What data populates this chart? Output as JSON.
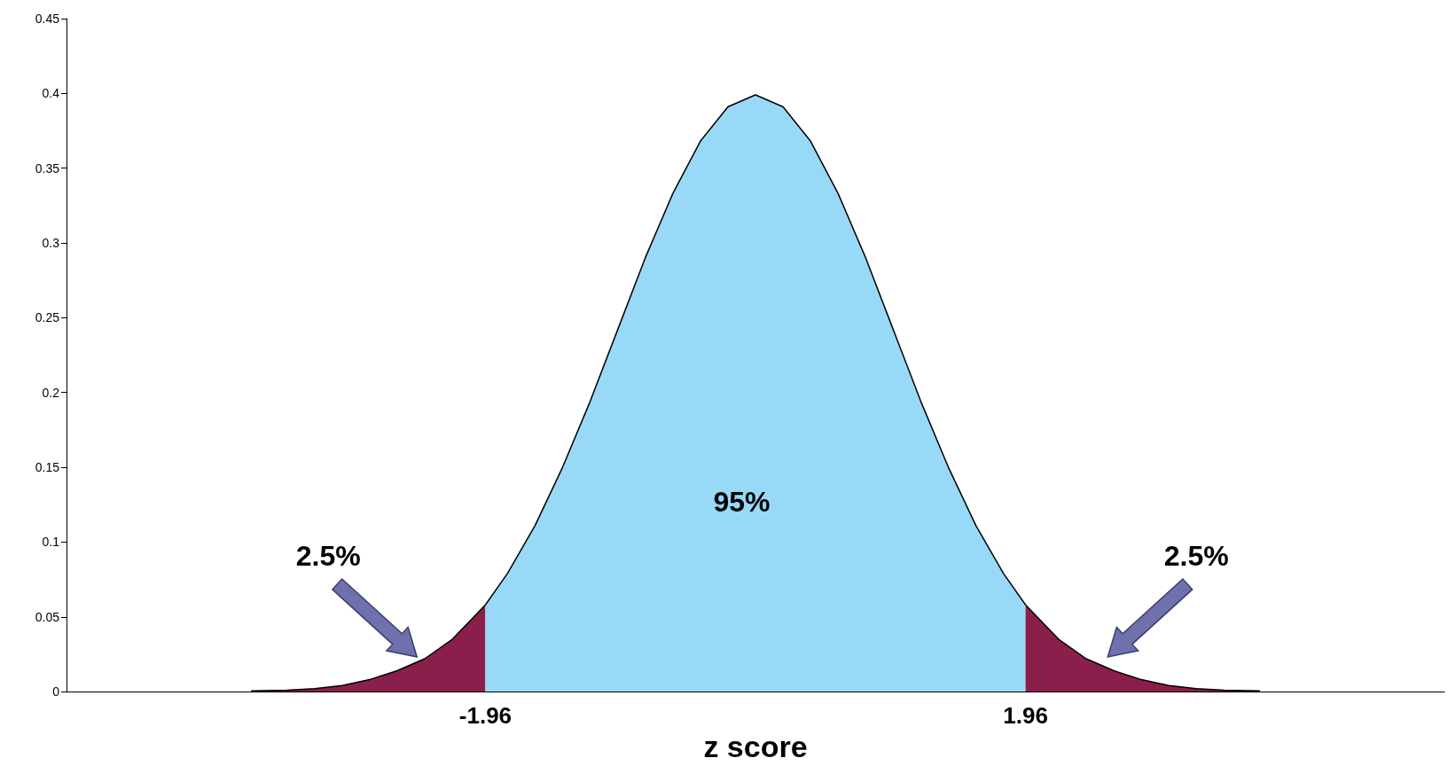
{
  "chart_data": {
    "type": "area",
    "xlabel": "z score",
    "xlim": [
      -5,
      5
    ],
    "xticks": [
      {
        "value": -1.96,
        "label": "-1.96"
      },
      {
        "value": 1.96,
        "label": "1.96"
      }
    ],
    "ylim": [
      0,
      0.45
    ],
    "yticks": [
      0,
      0.05,
      0.1,
      0.15,
      0.2,
      0.25,
      0.3,
      0.35,
      0.4,
      0.45
    ],
    "grid": false,
    "series": [
      {
        "color": "#8b1f4b",
        "x": [
          -3.66,
          -3.4,
          -3.2,
          -3.0,
          -2.8,
          -2.6,
          -2.4,
          -2.2,
          -1.96
        ],
        "values": [
          0.0005,
          0.001,
          0.002,
          0.004,
          0.008,
          0.014,
          0.022,
          0.035,
          0.058
        ]
      },
      {
        "color": "#99d9f8",
        "x": [
          -1.96,
          -1.8,
          -1.6,
          -1.4,
          -1.2,
          -1.0,
          -0.8,
          -0.6,
          -0.4,
          -0.2,
          0,
          0.2,
          0.4,
          0.6,
          0.8,
          1.0,
          1.2,
          1.4,
          1.6,
          1.8,
          1.96
        ],
        "values": [
          0.058,
          0.079,
          0.111,
          0.15,
          0.194,
          0.242,
          0.29,
          0.333,
          0.368,
          0.391,
          0.399,
          0.391,
          0.368,
          0.333,
          0.29,
          0.242,
          0.194,
          0.15,
          0.111,
          0.079,
          0.058
        ]
      },
      {
        "color": "#8b1f4b",
        "x": [
          1.96,
          2.2,
          2.4,
          2.6,
          2.8,
          3.0,
          3.2,
          3.4,
          3.66
        ],
        "values": [
          0.058,
          0.035,
          0.022,
          0.014,
          0.008,
          0.004,
          0.002,
          0.001,
          0.0005
        ]
      }
    ],
    "annotations": [
      "2.5%",
      "95%",
      "2.5%"
    ]
  }
}
